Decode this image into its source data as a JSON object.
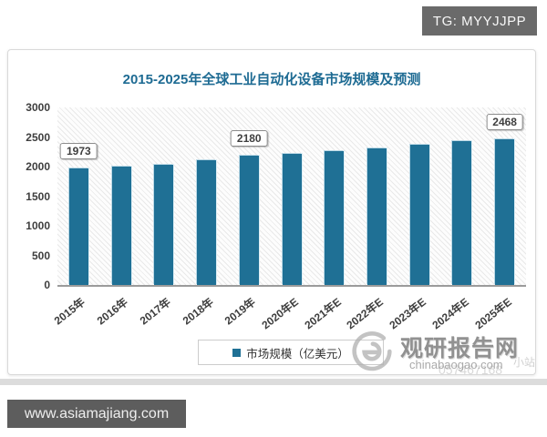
{
  "overlays": {
    "tg_badge": "TG: MYYJJPP",
    "footer_badge": "www.asiamajiang.com"
  },
  "watermark": {
    "site_name": "观研报告网",
    "site_domain": "chinabaogao.com",
    "overlay_digits": "057467168",
    "overlay_suffix": "小站"
  },
  "colors": {
    "bar_teal": "#1f7095",
    "title_text": "#1e6b93",
    "badge_bg": "#6a6a6a",
    "watermark_gray": "#919191"
  },
  "chart_data": {
    "type": "bar",
    "title": "2015-2025年全球工业自动化设备市场规模及预测",
    "categories": [
      "2015年",
      "2016年",
      "2017年",
      "2018年",
      "2019年",
      "2020年E",
      "2021年E",
      "2022年E",
      "2023年E",
      "2024年E",
      "2025年E"
    ],
    "values": [
      1973,
      2005,
      2035,
      2105,
      2180,
      2220,
      2265,
      2315,
      2375,
      2425,
      2468
    ],
    "data_labels": [
      1973,
      null,
      null,
      null,
      2180,
      null,
      null,
      null,
      null,
      null,
      2468
    ],
    "xlabel": "",
    "ylabel": "",
    "ylim": [
      0,
      3000
    ],
    "yticks": [
      0,
      500,
      1000,
      1500,
      2000,
      2500,
      3000
    ],
    "legend": [
      "市场规模（亿美元）"
    ],
    "legend_position": "bottom",
    "grid": false,
    "background_hatch": true,
    "bar_color": "#1f7095"
  }
}
